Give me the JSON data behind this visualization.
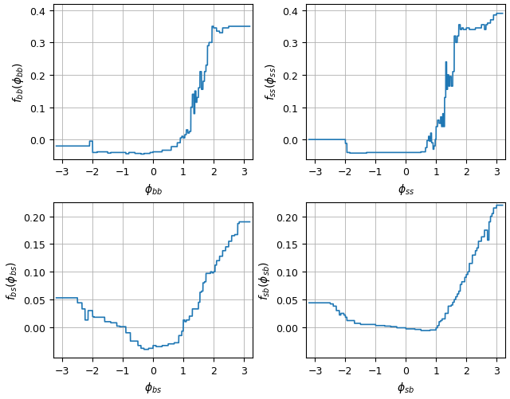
{
  "line_color": "#1f77b4",
  "line_width": 1.2,
  "background_color": "#ffffff",
  "grid_color": "#b0b0b0",
  "xlim": [
    -3.3,
    3.3
  ],
  "xticks": [
    -3,
    -2,
    -1,
    0,
    1,
    2,
    3
  ],
  "subplots": [
    {
      "ylabel": "$f_{bb}(\\phi_{bb})$",
      "xlabel": "$\\phi_{bb}$",
      "ylim": [
        -0.06,
        0.42
      ],
      "yticks": [
        0.0,
        0.1,
        0.2,
        0.3,
        0.4
      ]
    },
    {
      "ylabel": "$f_{ss}(\\phi_{ss})$",
      "xlabel": "$\\phi_{ss}$",
      "ylim": [
        -0.06,
        0.42
      ],
      "yticks": [
        0.0,
        0.1,
        0.2,
        0.3,
        0.4
      ]
    },
    {
      "ylabel": "$f_{bs}(\\phi_{bs})$",
      "xlabel": "$\\phi_{bs}$",
      "ylim": [
        -0.055,
        0.225
      ],
      "yticks": [
        0.0,
        0.05,
        0.1,
        0.15,
        0.2
      ]
    },
    {
      "ylabel": "$f_{sb}(\\phi_{sb})$",
      "xlabel": "$\\phi_{sb}$",
      "ylim": [
        -0.055,
        0.225
      ],
      "yticks": [
        0.0,
        0.05,
        0.1,
        0.15,
        0.2
      ]
    }
  ]
}
